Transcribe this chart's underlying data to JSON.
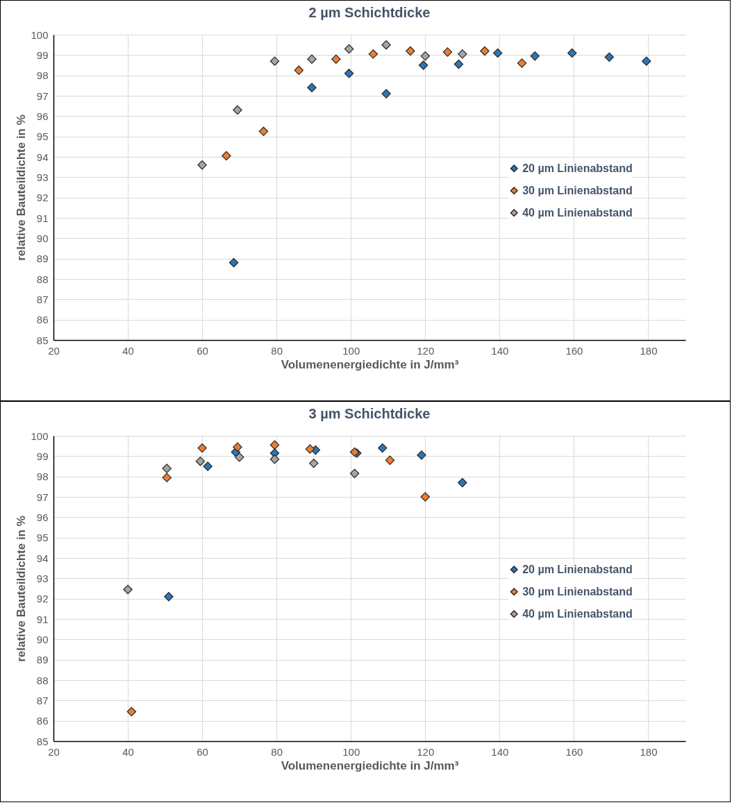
{
  "chart_data": [
    {
      "type": "scatter",
      "title": "2 µm Schichtdicke",
      "xlabel": "Volumenenergiedichte in J/mm³",
      "ylabel": "relative Bauteildichte in %",
      "xlim": [
        20,
        190
      ],
      "xticks": [
        20,
        40,
        60,
        80,
        100,
        120,
        140,
        160,
        180
      ],
      "ylim": [
        85,
        100
      ],
      "yticks": [
        85,
        86,
        87,
        88,
        89,
        90,
        91,
        92,
        93,
        94,
        95,
        96,
        97,
        98,
        99,
        100
      ],
      "grid": true,
      "legend": "right",
      "marker": "diamond",
      "series": [
        {
          "name": "20 µm Linienabstand",
          "color": "#2e75b6",
          "x": [
            68.5,
            89.5,
            99.5,
            109.5,
            119.5,
            129,
            139.5,
            149.5,
            159.5,
            169.5,
            179.5
          ],
          "values": [
            88.8,
            97.4,
            98.1,
            97.1,
            98.5,
            98.55,
            99.1,
            98.95,
            99.1,
            98.9,
            98.7
          ]
        },
        {
          "name": "30 µm Linienabstand",
          "color": "#ed7d31",
          "x": [
            66.5,
            76.5,
            86,
            96,
            106,
            116,
            126,
            136,
            146
          ],
          "values": [
            94.05,
            95.25,
            98.25,
            98.8,
            99.05,
            99.2,
            99.15,
            99.2,
            98.6
          ]
        },
        {
          "name": "40 µm Linienabstand",
          "color": "#a5a5a5",
          "x": [
            60,
            69.5,
            79.5,
            89.5,
            99.5,
            109.5,
            120,
            130
          ],
          "values": [
            93.6,
            96.3,
            98.7,
            98.8,
            99.3,
            99.5,
            98.95,
            99.05
          ]
        }
      ]
    },
    {
      "type": "scatter",
      "title": "3 µm Schichtdicke",
      "xlabel": "Volumenenergiedichte in J/mm³",
      "ylabel": "relative Bauteildichte in %",
      "xlim": [
        20,
        190
      ],
      "xticks": [
        20,
        40,
        60,
        80,
        100,
        120,
        140,
        160,
        180
      ],
      "ylim": [
        85,
        100
      ],
      "yticks": [
        85,
        86,
        87,
        88,
        89,
        90,
        91,
        92,
        93,
        94,
        95,
        96,
        97,
        98,
        99,
        100
      ],
      "grid": true,
      "legend": "right",
      "marker": "diamond",
      "series": [
        {
          "name": "20 µm Linienabstand",
          "color": "#2e75b6",
          "x": [
            51,
            61.5,
            69,
            79.5,
            90.5,
            101.6,
            108.5,
            119,
            130
          ],
          "values": [
            92.1,
            98.5,
            99.2,
            99.15,
            99.3,
            99.15,
            99.4,
            99.05,
            97.7
          ]
        },
        {
          "name": "30 µm Linienabstand",
          "color": "#ed7d31",
          "x": [
            41,
            50.5,
            60,
            69.5,
            79.5,
            89,
            101,
            110.5,
            120
          ],
          "values": [
            86.45,
            97.95,
            99.4,
            99.45,
            99.55,
            99.35,
            99.2,
            98.8,
            97.0
          ]
        },
        {
          "name": "40 µm Linienabstand",
          "color": "#a5a5a5",
          "x": [
            40,
            50.5,
            59.5,
            70,
            79.5,
            90,
            101
          ],
          "values": [
            92.45,
            98.4,
            98.75,
            98.95,
            98.85,
            98.65,
            98.15
          ]
        }
      ]
    }
  ]
}
